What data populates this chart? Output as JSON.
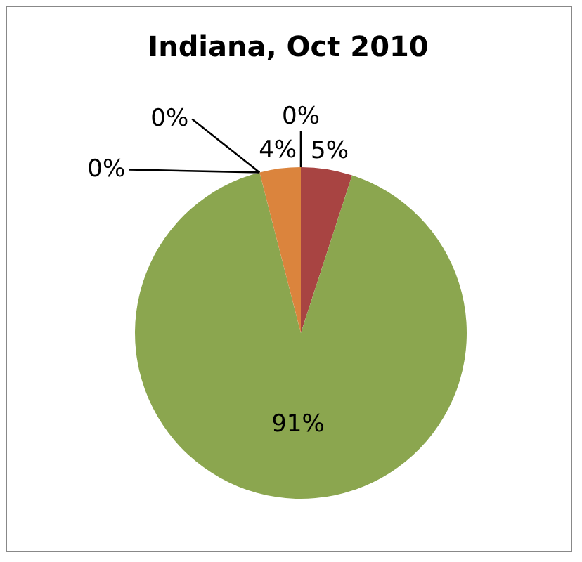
{
  "chart_data": {
    "type": "pie",
    "title": "Indiana, Oct 2010",
    "categories": [
      null,
      null,
      null,
      null,
      null,
      null
    ],
    "values": [
      0,
      5,
      91,
      0,
      0,
      4
    ],
    "colors": [
      "#4f81bd",
      "#a84442",
      "#8ba64f",
      "#8064a2",
      "#4bacc6",
      "#db843d"
    ],
    "value_labels": [
      "0%",
      "5%",
      "91%",
      "0%",
      "0%",
      "4%"
    ],
    "legend": false
  }
}
